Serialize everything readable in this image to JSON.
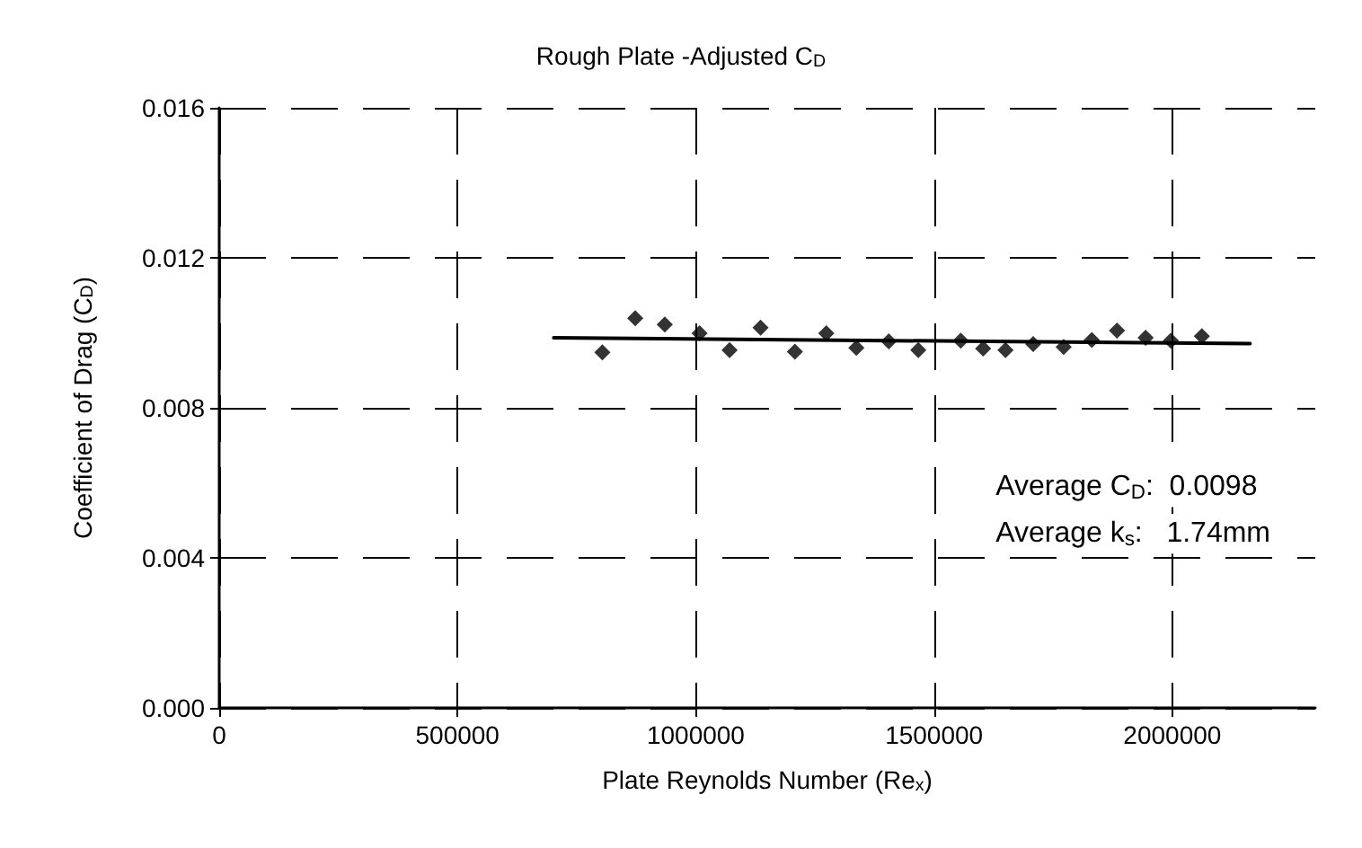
{
  "chart_data": {
    "type": "scatter",
    "title": "Rough Plate -Adjusted C$_{D}$",
    "xlabel": "Plate Reynolds Number (Re$_{x}$)",
    "ylabel": "Coefficient of Drag (C$_{D}$)",
    "annotations": [
      "Average C$_{D}$:  0.0098",
      "Average k$_{s}$:   1.74mm"
    ],
    "xlim": [
      0,
      2300000
    ],
    "xticks": [
      0,
      500000,
      1000000,
      1500000,
      2000000
    ],
    "ylim": [
      0,
      0.016
    ],
    "yticks": [
      {
        "value": 0,
        "label": "0.000"
      },
      {
        "value": 0.004,
        "label": "0.004"
      },
      {
        "value": 0.008,
        "label": "0.008"
      },
      {
        "value": 0.012,
        "label": "0.012"
      },
      {
        "value": 0.016,
        "label": "0.016"
      }
    ],
    "grid": true,
    "marker": "diamond",
    "series": [
      {
        "color": "#000000",
        "x": [
          804000,
          873000,
          935000,
          1008000,
          1071000,
          1136000,
          1208000,
          1274000,
          1337000,
          1405000,
          1467000,
          1556000,
          1603000,
          1650000,
          1708000,
          1772000,
          1831000,
          1884000,
          1944000,
          1997000,
          2062000
        ],
        "values": [
          0.00948,
          0.01039,
          0.01022,
          0.00999,
          0.00954,
          0.01014,
          0.0095,
          0.00999,
          0.0096,
          0.00977,
          0.00954,
          0.00979,
          0.00958,
          0.00954,
          0.0097,
          0.00962,
          0.00981,
          0.01006,
          0.00987,
          0.00979,
          0.00991
        ]
      },
      {
        "type": "line",
        "color": "#000000",
        "marker": "none",
        "line_style": "solid",
        "x": [
          702000,
          2163000
        ],
        "values": [
          0.00987,
          0.00971
        ]
      }
    ]
  }
}
